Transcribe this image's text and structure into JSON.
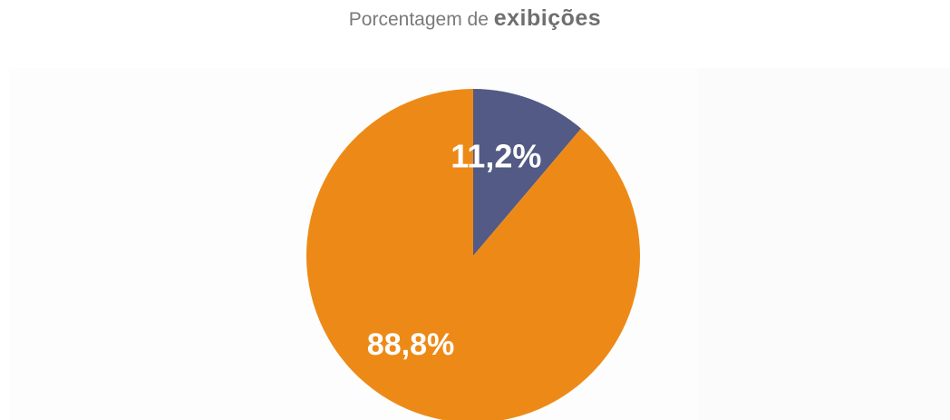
{
  "chart_data": {
    "type": "pie",
    "title_plain": "Porcentagem de",
    "title_emphasis": "exibições",
    "slices": [
      {
        "label": "11,2%",
        "value": 11.2,
        "color": "#525a85"
      },
      {
        "label": "88,8%",
        "value": 88.8,
        "color": "#ed8a17"
      }
    ]
  }
}
